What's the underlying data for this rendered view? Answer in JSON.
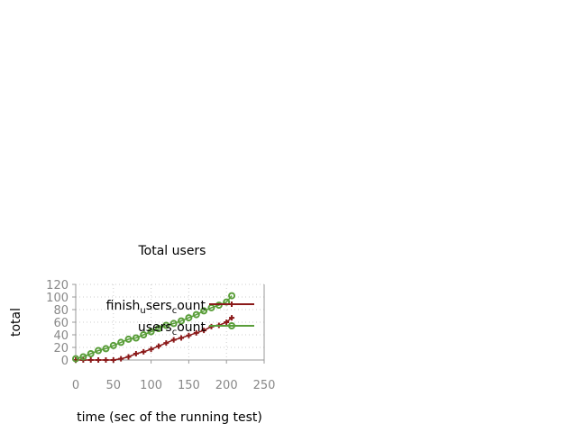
{
  "chart_data": {
    "type": "line",
    "title": "Total users",
    "xlabel": "time (sec of the running test)",
    "ylabel": "total",
    "xlim": [
      0,
      250
    ],
    "ylim": [
      0,
      120
    ],
    "x_ticks": [
      0,
      50,
      100,
      150,
      200,
      250
    ],
    "y_ticks": [
      0,
      20,
      40,
      60,
      80,
      100,
      120
    ],
    "grid": true,
    "legend_position": "inside-right",
    "series": [
      {
        "name": "finish_users_count",
        "legend_main": "finish",
        "legend_sub1": "u",
        "legend_mid": "sers",
        "legend_sub2": "c",
        "legend_end": "ount",
        "color": "#8b1a1a",
        "marker": "plus",
        "x": [
          0,
          10,
          20,
          30,
          40,
          50,
          60,
          70,
          80,
          90,
          100,
          110,
          120,
          130,
          140,
          150,
          160,
          170,
          180,
          190,
          200,
          207
        ],
        "y": [
          0,
          0,
          0,
          0,
          0,
          0,
          2,
          5,
          10,
          13,
          17,
          22,
          27,
          32,
          35,
          39,
          43,
          47,
          53,
          55,
          60,
          67
        ]
      },
      {
        "name": "users_count",
        "legend_main": "users",
        "legend_sub": "c",
        "legend_end": "ount",
        "color": "#5a9e3a",
        "marker": "circle",
        "x": [
          0,
          10,
          20,
          30,
          40,
          50,
          60,
          70,
          80,
          90,
          100,
          110,
          120,
          130,
          140,
          150,
          160,
          170,
          180,
          190,
          200,
          207
        ],
        "y": [
          2,
          5,
          10,
          15,
          18,
          23,
          28,
          33,
          35,
          40,
          45,
          50,
          55,
          58,
          62,
          67,
          72,
          78,
          83,
          87,
          92,
          102
        ]
      }
    ]
  }
}
